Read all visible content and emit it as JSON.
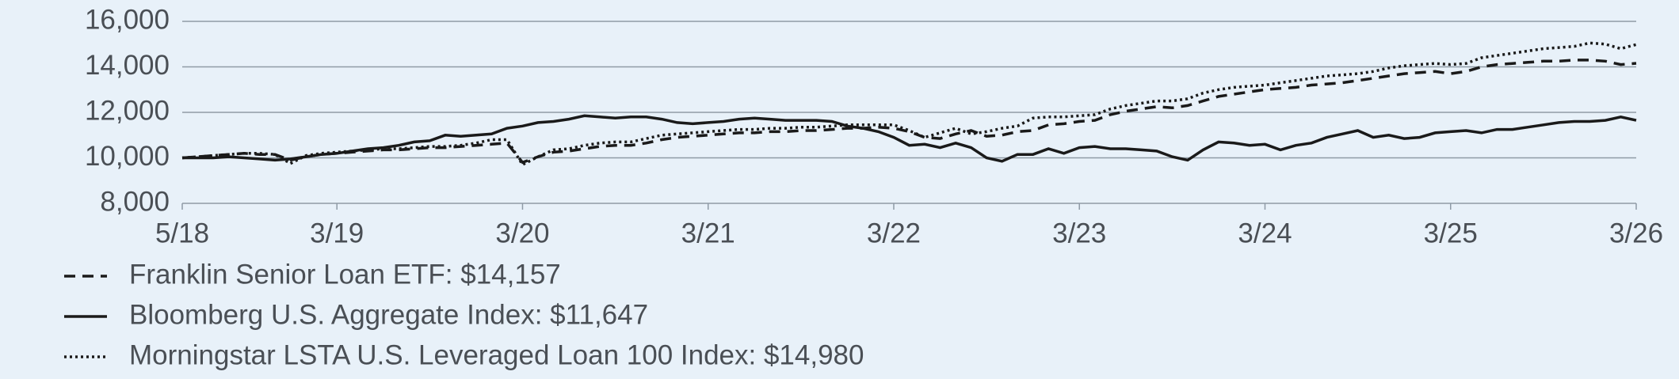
{
  "chart_data": {
    "type": "line",
    "categories": [
      "5/18",
      null,
      null,
      null,
      null,
      null,
      null,
      null,
      null,
      null,
      "3/19",
      null,
      null,
      null,
      null,
      null,
      null,
      null,
      null,
      null,
      null,
      null,
      "3/20",
      null,
      null,
      null,
      null,
      null,
      null,
      null,
      null,
      null,
      null,
      null,
      "3/21",
      null,
      null,
      null,
      null,
      null,
      null,
      null,
      null,
      null,
      null,
      null,
      "3/22",
      null,
      null,
      null,
      null,
      null,
      null,
      null,
      null,
      null,
      null,
      null,
      "3/23",
      null,
      null,
      null,
      null,
      null,
      null,
      null,
      null,
      null,
      null,
      null,
      "3/24",
      null,
      null,
      null,
      null,
      null,
      null,
      null,
      null,
      null,
      null,
      null,
      "3/25",
      null,
      null,
      null,
      null,
      null,
      null,
      null,
      null,
      null,
      null,
      null,
      "3/26"
    ],
    "series": [
      {
        "name": "Franklin Senior Loan ETF: $14,157",
        "color": "#1a1a1a",
        "dash": "dashed",
        "values": [
          10000,
          10050,
          10100,
          10150,
          10200,
          10150,
          10150,
          9900,
          10050,
          10150,
          10200,
          10250,
          10300,
          10350,
          10350,
          10400,
          10450,
          10450,
          10500,
          10550,
          10600,
          10650,
          9800,
          10050,
          10250,
          10300,
          10400,
          10500,
          10550,
          10550,
          10650,
          10800,
          10900,
          10950,
          11000,
          11050,
          11100,
          11100,
          11150,
          11150,
          11200,
          11200,
          11250,
          11300,
          11300,
          11350,
          11300,
          11150,
          10900,
          10850,
          11050,
          11200,
          10950,
          11000,
          11150,
          11200,
          11450,
          11500,
          11600,
          11650,
          11900,
          12050,
          12150,
          12250,
          12200,
          12300,
          12500,
          12700,
          12800,
          12900,
          13000,
          13050,
          13100,
          13200,
          13250,
          13300,
          13400,
          13500,
          13600,
          13700,
          13750,
          13800,
          13700,
          13800,
          14000,
          14100,
          14150,
          14200,
          14250,
          14250,
          14300,
          14300,
          14250,
          14100,
          14157
        ]
      },
      {
        "name": "Bloomberg U.S. Aggregate Index: $11,647",
        "color": "#1a1a1a",
        "dash": "solid",
        "values": [
          10000,
          10000,
          10000,
          10050,
          10000,
          9950,
          9900,
          9950,
          10050,
          10150,
          10200,
          10300,
          10400,
          10450,
          10550,
          10700,
          10750,
          11000,
          10950,
          11000,
          11050,
          11300,
          11400,
          11550,
          11600,
          11700,
          11850,
          11800,
          11750,
          11800,
          11800,
          11700,
          11550,
          11500,
          11550,
          11600,
          11700,
          11750,
          11700,
          11650,
          11650,
          11650,
          11600,
          11400,
          11300,
          11150,
          10900,
          10550,
          10600,
          10450,
          10650,
          10450,
          10000,
          9850,
          10150,
          10150,
          10400,
          10200,
          10450,
          10500,
          10400,
          10400,
          10350,
          10300,
          10050,
          9900,
          10350,
          10700,
          10650,
          10550,
          10600,
          10350,
          10550,
          10650,
          10900,
          11050,
          11200,
          10900,
          11000,
          10850,
          10900,
          11100,
          11150,
          11200,
          11100,
          11250,
          11250,
          11350,
          11450,
          11550,
          11600,
          11600,
          11650,
          11800,
          11647
        ]
      },
      {
        "name": "Morningstar LSTA U.S. Leveraged Loan 100 Index: $14,980",
        "color": "#1a1a1a",
        "dash": "dotted",
        "values": [
          10000,
          10050,
          10100,
          10150,
          10200,
          10200,
          10150,
          9750,
          10100,
          10200,
          10250,
          10300,
          10350,
          10400,
          10400,
          10450,
          10500,
          10500,
          10550,
          10650,
          10800,
          10800,
          9700,
          10050,
          10350,
          10400,
          10550,
          10650,
          10700,
          10700,
          10850,
          11000,
          11050,
          11100,
          11150,
          11200,
          11250,
          11250,
          11300,
          11300,
          11350,
          11350,
          11400,
          11450,
          11450,
          11450,
          11450,
          11200,
          10900,
          11100,
          11300,
          11050,
          11150,
          11300,
          11400,
          11750,
          11800,
          11800,
          11850,
          11900,
          12150,
          12300,
          12400,
          12500,
          12500,
          12600,
          12850,
          13000,
          13100,
          13150,
          13200,
          13300,
          13400,
          13500,
          13600,
          13650,
          13700,
          13800,
          13950,
          14050,
          14100,
          14150,
          14100,
          14150,
          14400,
          14500,
          14600,
          14700,
          14800,
          14850,
          14900,
          15050,
          15000,
          14800,
          14980
        ]
      }
    ],
    "ylim": [
      8000,
      16000
    ],
    "yticks": [
      {
        "value": 8000,
        "label": "8,000"
      },
      {
        "value": 10000,
        "label": "10,000"
      },
      {
        "value": 12000,
        "label": "12,000"
      },
      {
        "value": 14000,
        "label": "14,000"
      },
      {
        "value": 16000,
        "label": "16,000"
      }
    ],
    "grid": true
  }
}
